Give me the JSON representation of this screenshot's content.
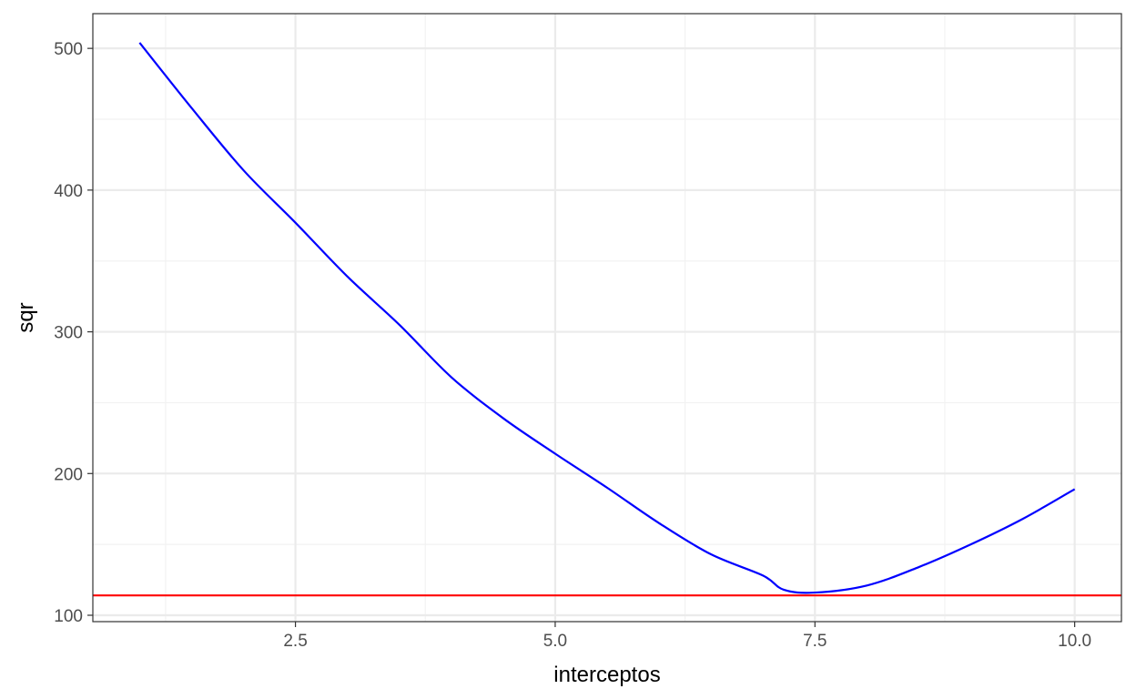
{
  "chart_data": {
    "type": "line",
    "title": "",
    "xlabel": "interceptos",
    "ylabel": "sqr",
    "xlim": [
      0.55,
      10.45
    ],
    "ylim": [
      95.5,
      524.5
    ],
    "x_ticks": [
      2.5,
      5.0,
      7.5,
      10.0
    ],
    "x_tick_labels": [
      "2.5",
      "5.0",
      "7.5",
      "10.0"
    ],
    "y_ticks": [
      100,
      200,
      300,
      400,
      500
    ],
    "y_tick_labels": [
      "100",
      "200",
      "300",
      "400",
      "500"
    ],
    "grid": true,
    "series": [
      {
        "color": "#0000ff",
        "x": [
          1.0,
          1.5,
          2.0,
          2.5,
          3.0,
          3.5,
          4.0,
          4.5,
          5.0,
          5.5,
          6.0,
          6.5,
          7.0,
          7.2,
          7.5,
          8.0,
          8.5,
          9.0,
          9.5,
          10.0
        ],
        "y": [
          504,
          458,
          414,
          377,
          339,
          305,
          268,
          239,
          214,
          190,
          165,
          143,
          128,
          118,
          116,
          121,
          134,
          150,
          168,
          189
        ]
      }
    ],
    "hline": {
      "y": 114,
      "color": "#ff0000"
    }
  }
}
